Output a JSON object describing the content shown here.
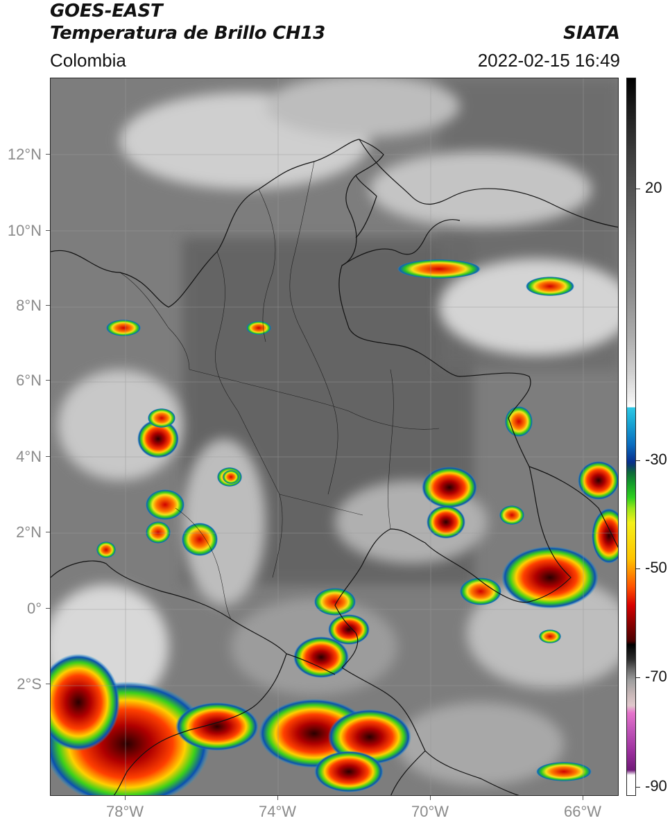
{
  "header": {
    "title_line1": "GOES-EAST",
    "title_line2": "Temperatura de Brillo CH13",
    "region": "Colombia",
    "brand": "SIATA",
    "datetime": "2022-02-15 16:49"
  },
  "map": {
    "latitude_labels": [
      "12°N",
      "10°N",
      "8°N",
      "6°N",
      "4°N",
      "2°N",
      "0°",
      "2°S"
    ],
    "longitude_labels": [
      "78°W",
      "74°W",
      "70°W",
      "66°W"
    ]
  },
  "colorbar": {
    "tick_labels": [
      "20",
      "-30",
      "-50",
      "-70",
      "-90"
    ],
    "colors": {
      "cold_top_black": "#000000",
      "cyan": "#19a7d4",
      "blue": "#07308f",
      "green": "#2fd11e",
      "yellow": "#f4f01a",
      "orange": "#ff8c00",
      "red": "#d80000",
      "magenta": "#c054b8",
      "purple": "#701a78"
    }
  }
}
